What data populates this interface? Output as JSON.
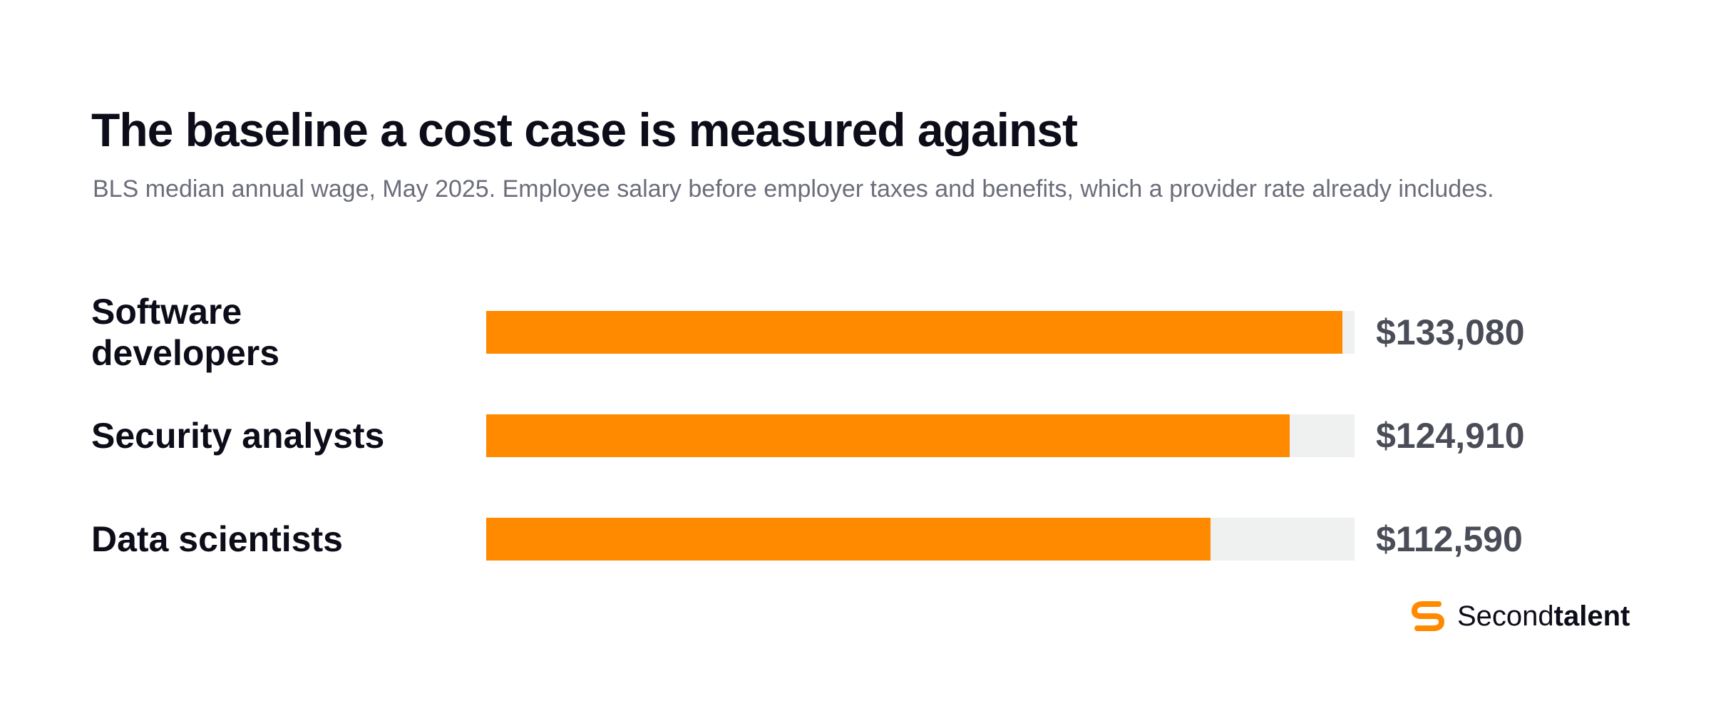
{
  "chart_data": {
    "type": "bar",
    "orientation": "horizontal",
    "title": "The baseline a cost case is measured against",
    "subtitle": "BLS median annual wage, May 2025. Employee salary before employer taxes and benefits, which a provider rate already includes.",
    "categories": [
      "Software developers",
      "Security analysts",
      "Data scientists"
    ],
    "values": [
      133080,
      124910,
      112590
    ],
    "value_labels": [
      "$133,080",
      "$124,910",
      "$112,590"
    ],
    "xlim": [
      0,
      135000
    ],
    "grid": false,
    "legend": "none"
  },
  "colors": {
    "bar": "#ff8a00",
    "track": "#eff0f0",
    "logo_accent": "#ff8a00"
  },
  "brand": {
    "icon": "secondtalent-logo-icon",
    "name_regular": "Second",
    "name_bold": "talent"
  }
}
